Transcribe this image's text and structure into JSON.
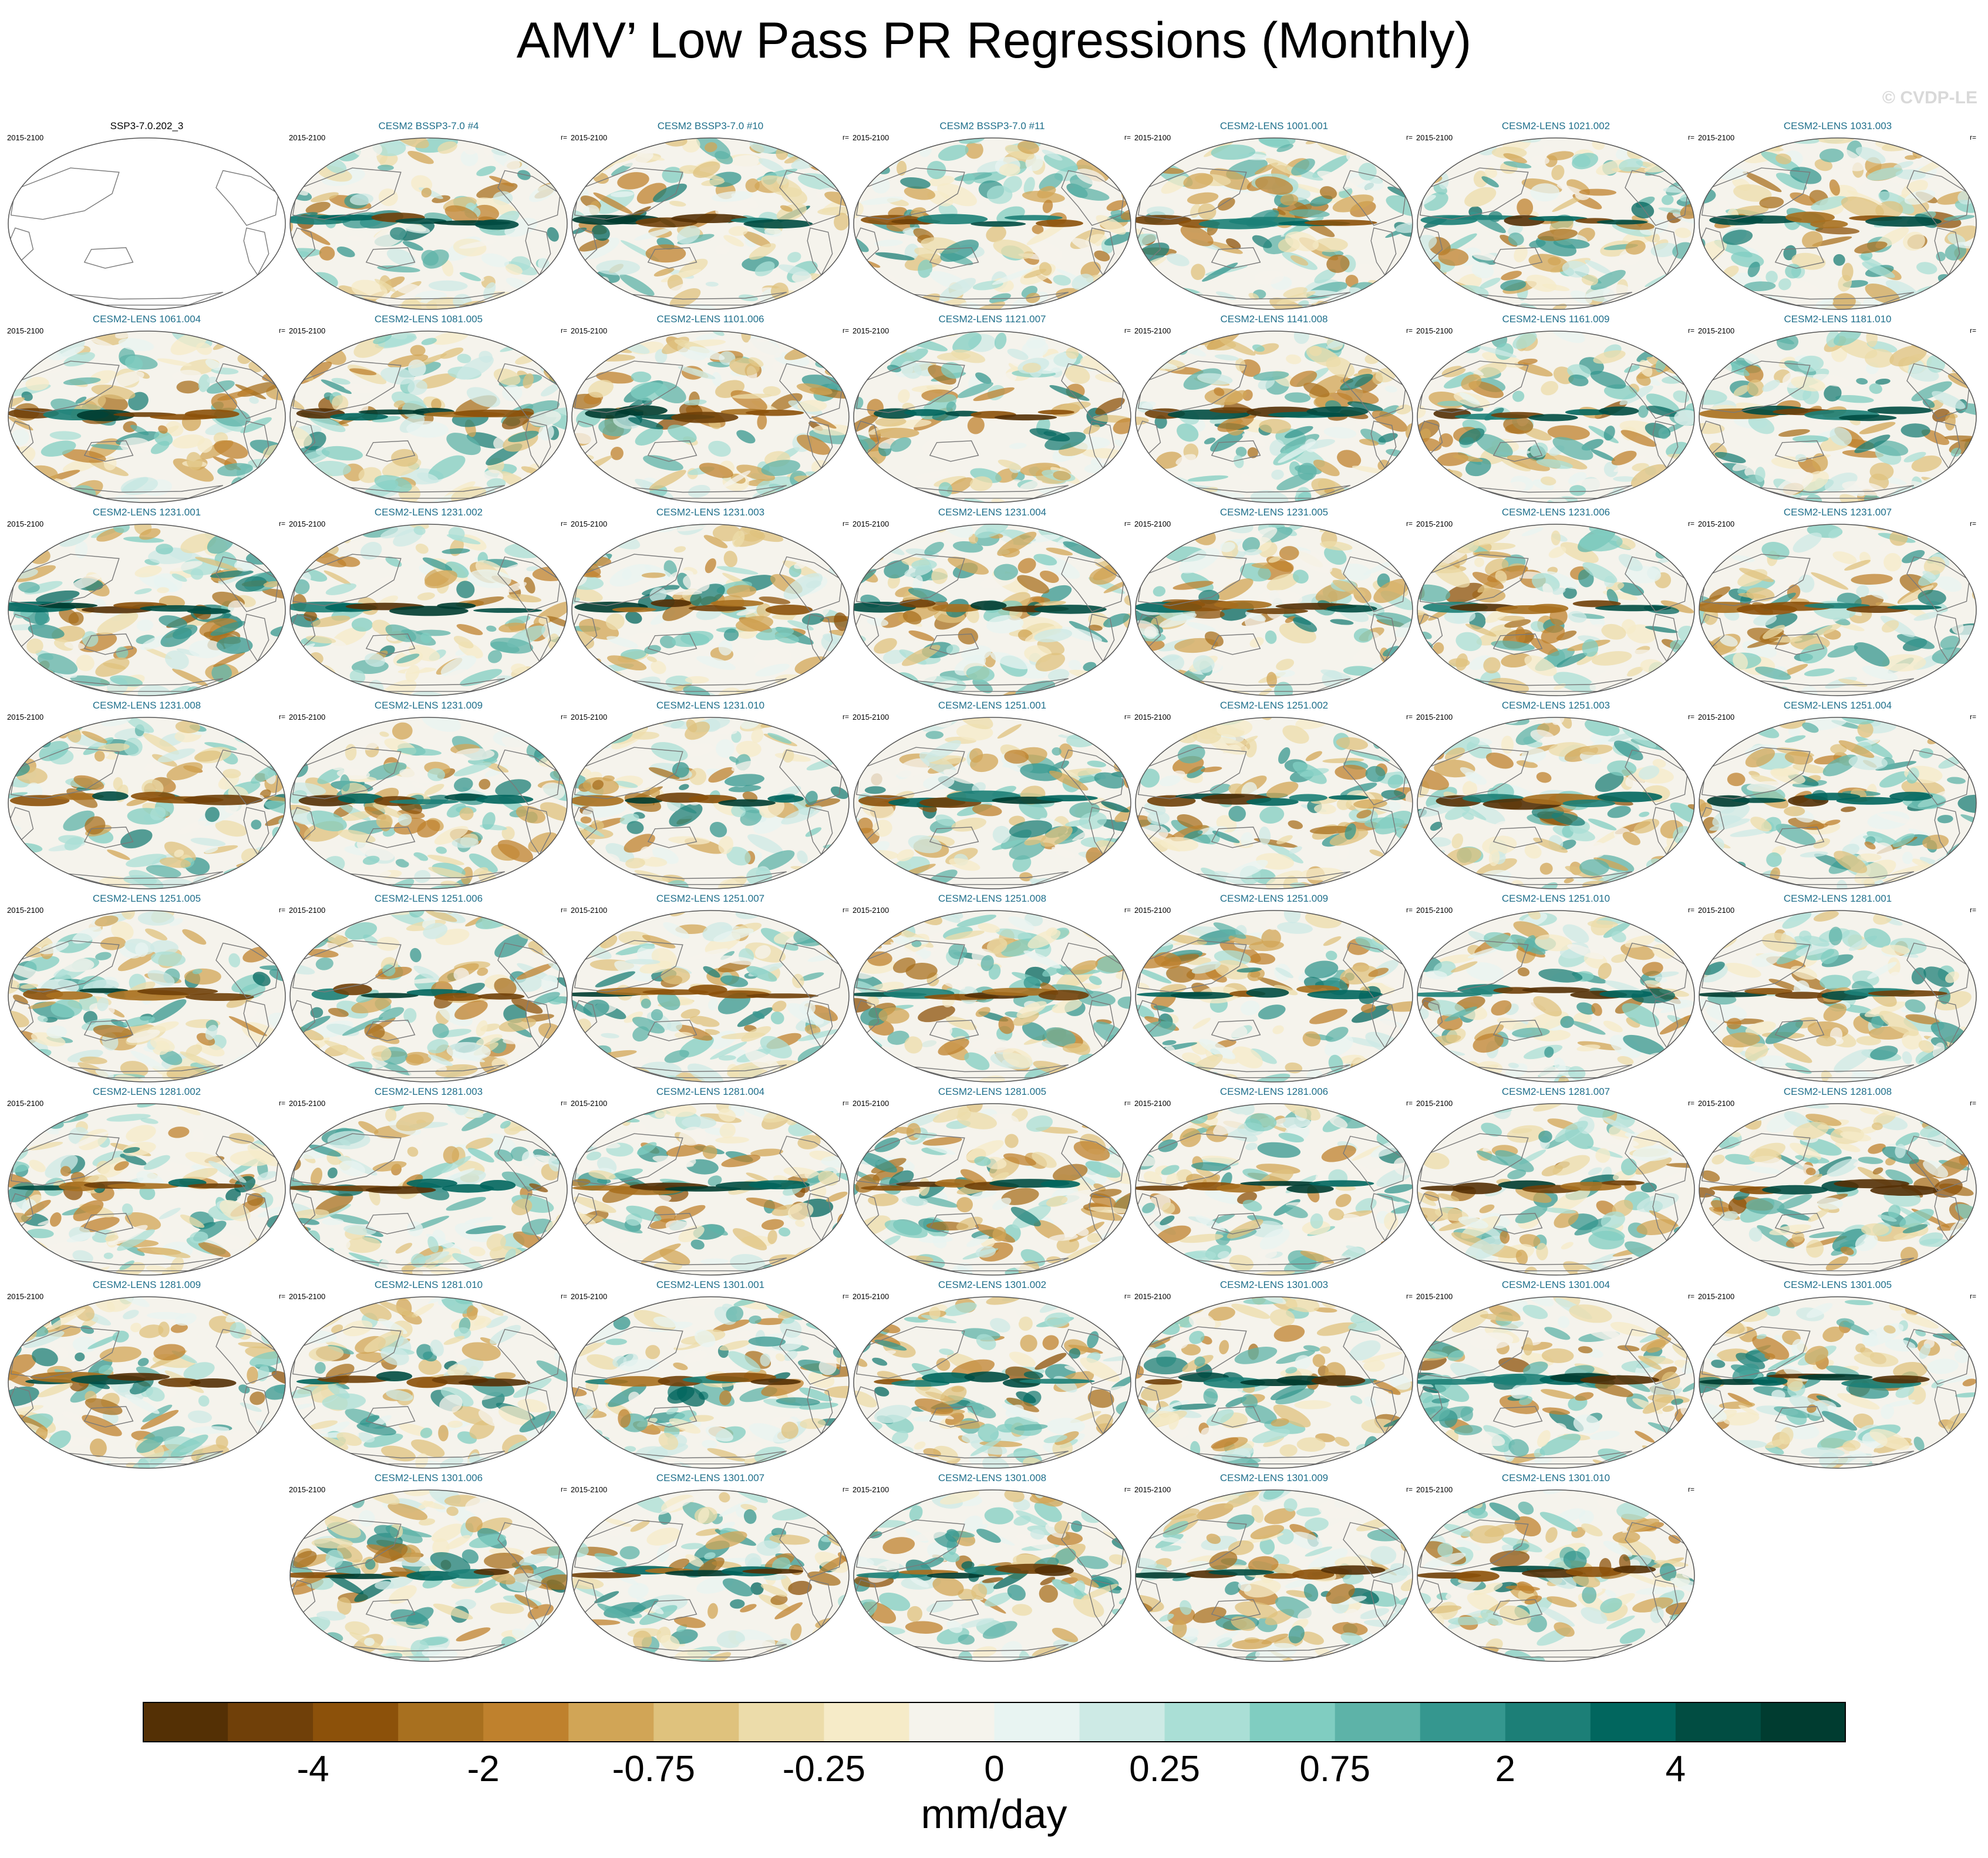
{
  "title": "AMV’ Low Pass PR Regressions (Monthly)",
  "watermark": "© CVDP-LE",
  "period": "2015-2100",
  "corr_label": "r=",
  "colors": {
    "palette": [
      "#543005",
      "#704009",
      "#8c510a",
      "#a8701f",
      "#bf812d",
      "#d1a556",
      "#dfc27d",
      "#ecdcaa",
      "#f6ebc8",
      "#f5f3ec",
      "#e8f4f2",
      "#cdeae5",
      "#aadfd6",
      "#80cdc1",
      "#5db3a8",
      "#35978f",
      "#1c7f77",
      "#01665e",
      "#014d42",
      "#003c30"
    ],
    "land_outline": "#7a7a7a",
    "title_link": "#1f6f8b"
  },
  "chart_data": {
    "type": "heatmap",
    "title": "AMV’ Low Pass PR Regressions (Monthly)",
    "variable": "PR regression on AMV’ (low pass)",
    "units": "mm/day",
    "colorbar": {
      "ticks": [
        "-4",
        "-2",
        "-0.75",
        "-0.25",
        "0",
        "0.25",
        "0.75",
        "2",
        "4"
      ],
      "n_colors": 20
    },
    "panels": [
      "SSP3-7.0.202_3",
      "CESM2 BSSP3-7.0 #4",
      "CESM2 BSSP3-7.0 #10",
      "CESM2 BSSP3-7.0 #11",
      "CESM2-LENS 1001.001",
      "CESM2-LENS 1021.002",
      "CESM2-LENS 1031.003",
      "CESM2-LENS 1061.004",
      "CESM2-LENS 1081.005",
      "CESM2-LENS 1101.006",
      "CESM2-LENS 1121.007",
      "CESM2-LENS 1141.008",
      "CESM2-LENS 1161.009",
      "CESM2-LENS 1181.010",
      "CESM2-LENS 1231.001",
      "CESM2-LENS 1231.002",
      "CESM2-LENS 1231.003",
      "CESM2-LENS 1231.004",
      "CESM2-LENS 1231.005",
      "CESM2-LENS 1231.006",
      "CESM2-LENS 1231.007",
      "CESM2-LENS 1231.008",
      "CESM2-LENS 1231.009",
      "CESM2-LENS 1231.010",
      "CESM2-LENS 1251.001",
      "CESM2-LENS 1251.002",
      "CESM2-LENS 1251.003",
      "CESM2-LENS 1251.004",
      "CESM2-LENS 1251.005",
      "CESM2-LENS 1251.006",
      "CESM2-LENS 1251.007",
      "CESM2-LENS 1251.008",
      "CESM2-LENS 1251.009",
      "CESM2-LENS 1251.010",
      "CESM2-LENS 1281.001",
      "CESM2-LENS 1281.002",
      "CESM2-LENS 1281.003",
      "CESM2-LENS 1281.004",
      "CESM2-LENS 1281.005",
      "CESM2-LENS 1281.006",
      "CESM2-LENS 1281.007",
      "CESM2-LENS 1281.008",
      "CESM2-LENS 1281.009",
      "CESM2-LENS 1281.010",
      "CESM2-LENS 1301.001",
      "CESM2-LENS 1301.002",
      "CESM2-LENS 1301.003",
      "CESM2-LENS 1301.004",
      "CESM2-LENS 1301.005",
      "CESM2-LENS 1301.006",
      "CESM2-LENS 1301.007",
      "CESM2-LENS 1301.008",
      "CESM2-LENS 1301.009",
      "CESM2-LENS 1301.010"
    ]
  }
}
